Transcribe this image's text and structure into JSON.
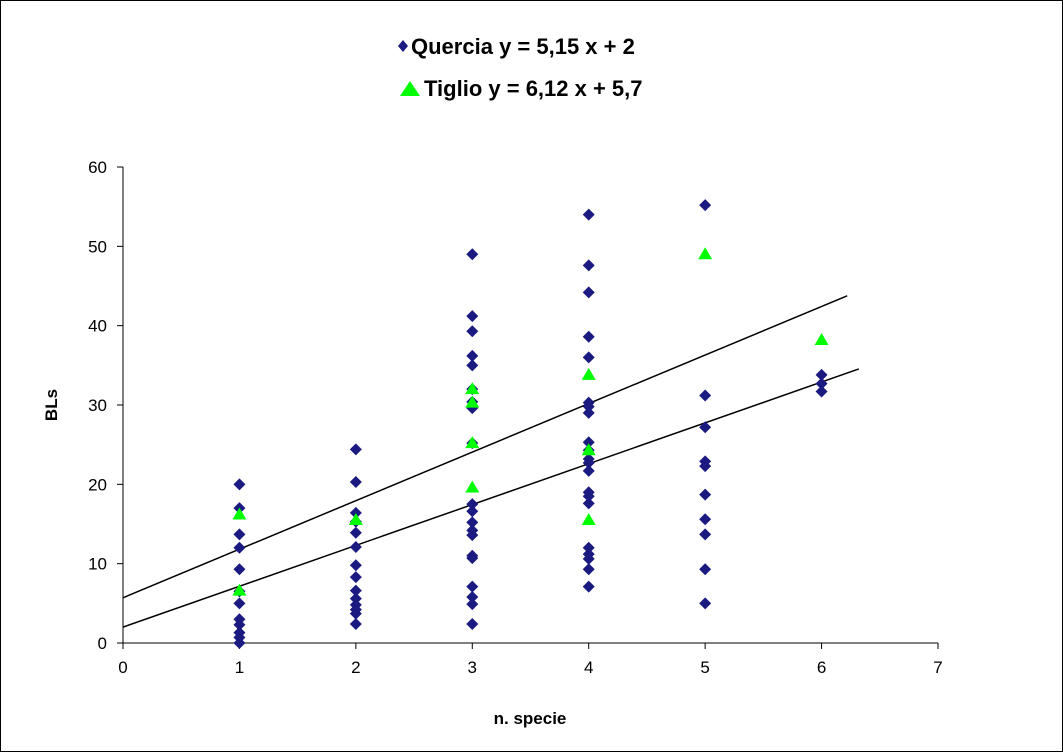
{
  "chart_data": {
    "type": "scatter",
    "xlabel": "n. specie",
    "ylabel": "BLs",
    "xlim": [
      0,
      7
    ],
    "ylim": [
      0,
      60
    ],
    "xticks": [
      0,
      1,
      2,
      3,
      4,
      5,
      6,
      7
    ],
    "yticks": [
      0,
      10,
      20,
      30,
      40,
      50,
      60
    ],
    "grid": false,
    "legend_position": "top-center",
    "series": [
      {
        "name": "Quercia",
        "equation": "y = 5,15 x + 2",
        "color": "#1a1a80",
        "marker": "diamond",
        "fit": {
          "slope": 5.15,
          "intercept": 2
        },
        "points": [
          [
            1,
            20
          ],
          [
            1,
            17
          ],
          [
            1,
            13.7
          ],
          [
            1,
            12
          ],
          [
            1,
            9.3
          ],
          [
            1,
            6.5
          ],
          [
            1,
            5
          ],
          [
            1,
            3
          ],
          [
            1,
            2.3
          ],
          [
            1,
            1.3
          ],
          [
            1,
            0.7
          ],
          [
            1,
            0
          ],
          [
            2,
            24.4
          ],
          [
            2,
            20.3
          ],
          [
            2,
            16.4
          ],
          [
            2,
            15.3
          ],
          [
            2,
            13.9
          ],
          [
            2,
            12.1
          ],
          [
            2,
            9.8
          ],
          [
            2,
            8.3
          ],
          [
            2,
            6.6
          ],
          [
            2,
            5.6
          ],
          [
            2,
            4.8
          ],
          [
            2,
            4.2
          ],
          [
            2,
            3.7
          ],
          [
            2,
            2.4
          ],
          [
            3,
            49
          ],
          [
            3,
            41.2
          ],
          [
            3,
            39.3
          ],
          [
            3,
            36.2
          ],
          [
            3,
            35
          ],
          [
            3,
            32
          ],
          [
            3,
            30.4
          ],
          [
            3,
            29.6
          ],
          [
            3,
            25.2
          ],
          [
            3,
            17.5
          ],
          [
            3,
            16.6
          ],
          [
            3,
            15.2
          ],
          [
            3,
            14.2
          ],
          [
            3,
            13.6
          ],
          [
            3,
            11
          ],
          [
            3,
            10.7
          ],
          [
            3,
            7.1
          ],
          [
            3,
            5.8
          ],
          [
            3,
            4.9
          ],
          [
            3,
            2.4
          ],
          [
            4,
            54
          ],
          [
            4,
            47.6
          ],
          [
            4,
            44.2
          ],
          [
            4,
            38.6
          ],
          [
            4,
            36
          ],
          [
            4,
            30.3
          ],
          [
            4,
            29.8
          ],
          [
            4,
            29
          ],
          [
            4,
            25.3
          ],
          [
            4,
            24.3
          ],
          [
            4,
            23.2
          ],
          [
            4,
            22.7
          ],
          [
            4,
            21.7
          ],
          [
            4,
            19
          ],
          [
            4,
            18.5
          ],
          [
            4,
            17.6
          ],
          [
            4,
            12
          ],
          [
            4,
            11.2
          ],
          [
            4,
            10.6
          ],
          [
            4,
            9.3
          ],
          [
            4,
            7.1
          ],
          [
            5,
            55.2
          ],
          [
            5,
            31.2
          ],
          [
            5,
            27.2
          ],
          [
            5,
            22.9
          ],
          [
            5,
            22.3
          ],
          [
            5,
            18.7
          ],
          [
            5,
            15.6
          ],
          [
            5,
            13.7
          ],
          [
            5,
            9.3
          ],
          [
            5,
            5
          ],
          [
            6,
            33.8
          ],
          [
            6,
            32.7
          ],
          [
            6,
            31.7
          ]
        ]
      },
      {
        "name": "Tiglio",
        "equation": "y = 6,12 x + 5,7",
        "color": "#00ff00",
        "marker": "triangle",
        "fit": {
          "slope": 6.12,
          "intercept": 5.7
        },
        "points": [
          [
            1,
            16.2
          ],
          [
            1,
            6.6
          ],
          [
            2,
            15.5
          ],
          [
            3,
            32
          ],
          [
            3,
            30.3
          ],
          [
            3,
            25.2
          ],
          [
            3,
            19.6
          ],
          [
            4,
            33.8
          ],
          [
            4,
            24.3
          ],
          [
            4,
            15.5
          ],
          [
            5,
            49
          ],
          [
            6,
            38.2
          ]
        ]
      }
    ]
  }
}
